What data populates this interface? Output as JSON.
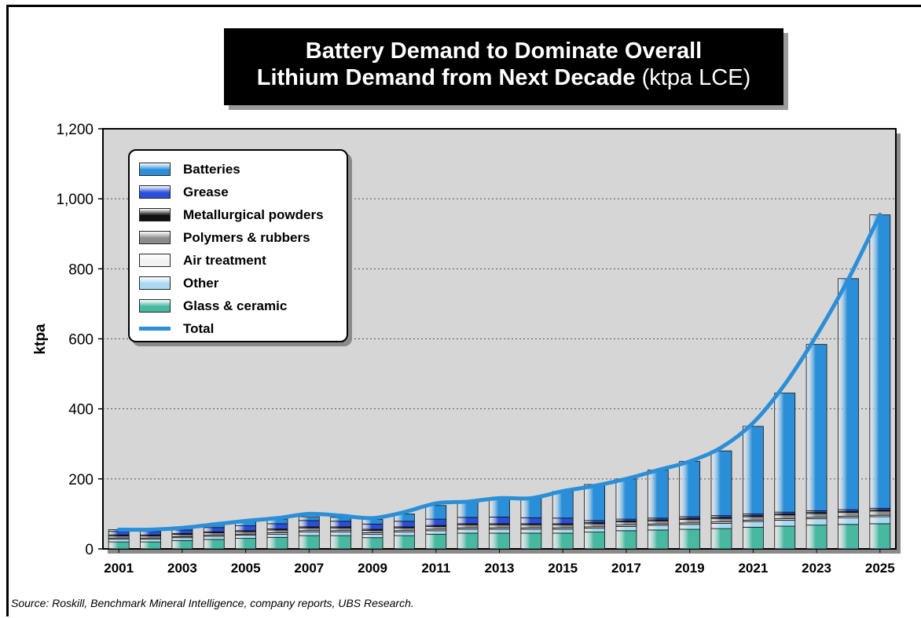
{
  "title": {
    "line1": "Battery Demand to Dominate Overall",
    "line2": "Lithium Demand from Next Decade",
    "unit": "(ktpa LCE)"
  },
  "source": "Source: Roskill, Benchmark Mineral Intelligence, company reports, UBS Research.",
  "colors": {
    "Batteries": "#2a8fd8",
    "Grease": "#2b4fd8",
    "Metallurgical powders": "#111111",
    "Polymers & rubbers": "#8c8c8c",
    "Air treatment": "#f2f2f2",
    "Other": "#a9d8f2",
    "Glass & ceramic": "#48b8a0",
    "Total": "#2a8fd8",
    "plot_bg": "#d6d6d6"
  },
  "chart_data": {
    "type": "bar",
    "stacked": true,
    "title": "Battery Demand to Dominate Overall Lithium Demand from Next Decade (ktpa LCE)",
    "ylabel": "ktpa",
    "xlabel": "",
    "ylim": [
      0,
      1200
    ],
    "yticks": [
      0,
      200,
      400,
      600,
      800,
      1000,
      1200
    ],
    "ytick_labels": [
      "0",
      "200",
      "400",
      "600",
      "800",
      "1,000",
      "1,200"
    ],
    "grid": "horizontal dotted",
    "legend_position": "top-left",
    "categories": [
      "2001",
      "2002",
      "2003",
      "2004",
      "2005",
      "2006",
      "2007",
      "2008",
      "2009",
      "2010",
      "2011",
      "2012",
      "2013",
      "2014",
      "2015",
      "2016",
      "2017",
      "2018",
      "2019",
      "2020",
      "2021",
      "2022",
      "2023",
      "2024",
      "2025"
    ],
    "xtick_labels": [
      "2001",
      "2003",
      "2005",
      "2007",
      "2009",
      "2011",
      "2013",
      "2015",
      "2017",
      "2019",
      "2021",
      "2023",
      "2025"
    ],
    "series": [
      {
        "name": "Glass & ceramic",
        "values": [
          20,
          20,
          24,
          27,
          30,
          33,
          38,
          38,
          32,
          38,
          42,
          45,
          45,
          45,
          45,
          48,
          52,
          54,
          56,
          58,
          62,
          65,
          68,
          70,
          72
        ]
      },
      {
        "name": "Other",
        "values": [
          8,
          8,
          8,
          9,
          9,
          9,
          10,
          10,
          10,
          10,
          10,
          11,
          11,
          11,
          11,
          11,
          12,
          13,
          14,
          15,
          16,
          17,
          18,
          19,
          20
        ]
      },
      {
        "name": "Air treatment",
        "values": [
          3,
          3,
          3,
          3,
          3,
          4,
          4,
          4,
          4,
          4,
          4,
          4,
          4,
          4,
          4,
          4,
          4,
          4,
          4,
          4,
          4,
          4,
          4,
          4,
          4
        ]
      },
      {
        "name": "Polymers & rubbers",
        "values": [
          6,
          6,
          6,
          7,
          7,
          8,
          8,
          8,
          7,
          8,
          8,
          9,
          9,
          9,
          9,
          9,
          9,
          9,
          10,
          10,
          10,
          11,
          11,
          11,
          12
        ]
      },
      {
        "name": "Metallurgical powders",
        "values": [
          3,
          3,
          3,
          3,
          3,
          3,
          3,
          3,
          3,
          3,
          3,
          3,
          3,
          3,
          3,
          3,
          3,
          3,
          3,
          3,
          3,
          3,
          3,
          3,
          3
        ]
      },
      {
        "name": "Grease",
        "values": [
          10,
          10,
          10,
          12,
          14,
          15,
          18,
          16,
          15,
          16,
          18,
          18,
          19,
          17,
          16,
          6,
          5,
          5,
          5,
          5,
          5,
          5,
          5,
          5,
          5
        ]
      },
      {
        "name": "Batteries",
        "values": [
          5,
          5,
          6,
          8,
          12,
          13,
          11,
          11,
          13,
          21,
          39,
          45,
          54,
          58,
          76,
          103,
          115,
          137,
          158,
          185,
          250,
          340,
          475,
          660,
          838
        ]
      },
      {
        "name": "Total",
        "type": "line",
        "values": [
          55,
          55,
          60,
          70,
          80,
          88,
          100,
          95,
          88,
          105,
          130,
          135,
          145,
          145,
          165,
          180,
          200,
          225,
          250,
          290,
          360,
          470,
          610,
          770,
          955
        ]
      }
    ]
  }
}
